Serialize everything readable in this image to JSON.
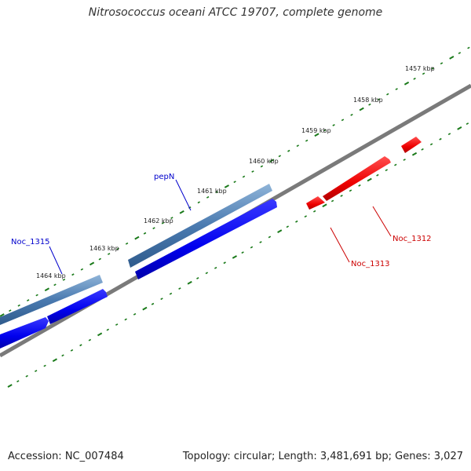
{
  "title": "Nitrosococcus oceani ATCC 19707, complete genome",
  "footer": {
    "accession": "Accession: NC_007484",
    "genome_info": "Topology: circular; Length: 3,481,691 bp; Genes: 3,027"
  },
  "scale_labels": [
    "1457 kbp",
    "1458 kbp",
    "1459 kbp",
    "1460 kbp",
    "1461 kbp",
    "1462 kbp",
    "1463 kbp",
    "1464 kbp"
  ],
  "gene_labels": [
    {
      "text": "pepN",
      "color": "#0000cc"
    },
    {
      "text": "Noc_1315",
      "color": "#0000cc"
    },
    {
      "text": "Noc_1312",
      "color": "#cc0000"
    },
    {
      "text": "Noc_1313",
      "color": "#cc0000"
    }
  ],
  "colors": {
    "backbone": "#777777",
    "tick_dots": "#1a7a1a",
    "reverse_cds": "#0000ee",
    "reverse_gene": "#4a7ab0",
    "forward_cds": "#ee0000"
  }
}
